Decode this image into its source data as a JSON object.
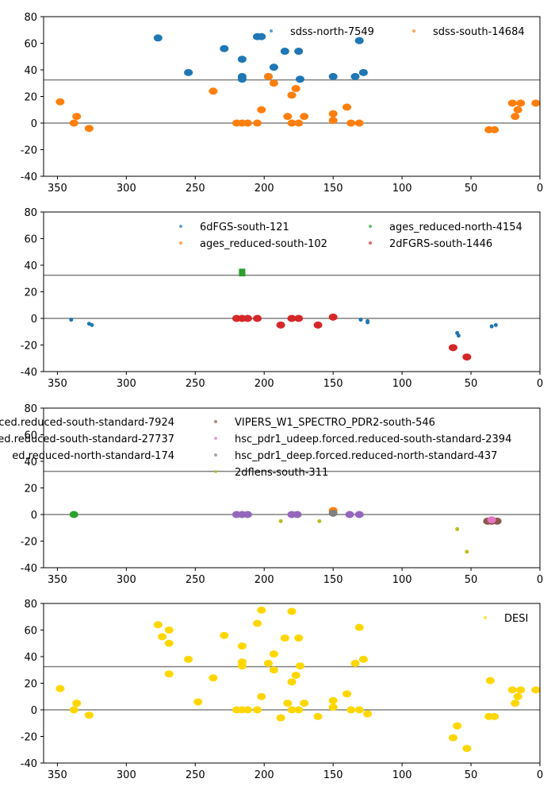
{
  "chart_data": [
    {
      "type": "scatter",
      "xlim": [
        360,
        0
      ],
      "ylim": [
        -40,
        80
      ],
      "xticks": [
        "350",
        "300",
        "250",
        "200",
        "150",
        "100",
        "50",
        "0"
      ],
      "yticks": [
        "80",
        "60",
        "40",
        "20",
        "0",
        "-20",
        "-40"
      ],
      "hlines": [
        0,
        32.5
      ],
      "legend": "top-right",
      "series": [
        {
          "name": "sdss-north-7549",
          "color": "#1f77b4",
          "points": [
            [
              277,
              64
            ],
            [
              255,
              38
            ],
            [
              229,
              56
            ],
            [
              216,
              48
            ],
            [
              216,
              35
            ],
            [
              216,
              33
            ],
            [
              205,
              65
            ],
            [
              202,
              65
            ],
            [
              197,
              35
            ],
            [
              193,
              42
            ],
            [
              185,
              54
            ],
            [
              175,
              54
            ],
            [
              174,
              33
            ],
            [
              150,
              35
            ],
            [
              134,
              35
            ],
            [
              131,
              62
            ],
            [
              128,
              38
            ]
          ]
        },
        {
          "name": "sdss-south-14684",
          "color": "#ff7f0e",
          "points": [
            [
              348,
              16
            ],
            [
              338,
              0
            ],
            [
              336,
              5
            ],
            [
              327,
              -4
            ],
            [
              237,
              24
            ],
            [
              220,
              0
            ],
            [
              216,
              0
            ],
            [
              212,
              0
            ],
            [
              205,
              0
            ],
            [
              202,
              10
            ],
            [
              197,
              35
            ],
            [
              193,
              30
            ],
            [
              183,
              5
            ],
            [
              180,
              0
            ],
            [
              180,
              21
            ],
            [
              177,
              26
            ],
            [
              175,
              0
            ],
            [
              171,
              5
            ],
            [
              150,
              7
            ],
            [
              150,
              2
            ],
            [
              140,
              12
            ],
            [
              137,
              0
            ],
            [
              131,
              0
            ],
            [
              37,
              -5
            ],
            [
              33,
              -5
            ],
            [
              20,
              15
            ],
            [
              18,
              5
            ],
            [
              16,
              10
            ],
            [
              14,
              15
            ],
            [
              3,
              15
            ]
          ]
        }
      ]
    },
    {
      "type": "scatter",
      "xlim": [
        360,
        0
      ],
      "ylim": [
        -40,
        80
      ],
      "xticks": [
        "350",
        "300",
        "250",
        "200",
        "150",
        "100",
        "50",
        "0"
      ],
      "yticks": [
        "80",
        "60",
        "40",
        "20",
        "0",
        "-20",
        "-40"
      ],
      "hlines": [
        0,
        32.5
      ],
      "legend": "top-right",
      "series": [
        {
          "name": "6dFGS-south-121",
          "color": "#1f77b4",
          "points": [
            [
              340,
              -1
            ],
            [
              327,
              -4
            ],
            [
              325,
              -5
            ],
            [
              188,
              -6
            ],
            [
              130,
              -1
            ],
            [
              125,
              -2
            ],
            [
              125,
              -3
            ],
            [
              63,
              -21
            ],
            [
              60,
              -11
            ],
            [
              59,
              -13
            ],
            [
              35,
              -6
            ],
            [
              32,
              -5
            ]
          ]
        },
        {
          "name": "ages_reduced-south-102",
          "color": "#ff7f0e",
          "points": [
            [
              150,
              1
            ]
          ]
        },
        {
          "name": "ages_reduced-north-4154",
          "color": "#2ca02c",
          "points": [
            [
              216,
              35
            ],
            [
              216,
              34
            ]
          ]
        },
        {
          "name": "2dFGRS-south-1446",
          "color": "#d62728",
          "points": [
            [
              220,
              0
            ],
            [
              216,
              0
            ],
            [
              212,
              0
            ],
            [
              205,
              0
            ],
            [
              188,
              -5
            ],
            [
              180,
              0
            ],
            [
              175,
              0
            ],
            [
              161,
              -5
            ],
            [
              150,
              1
            ],
            [
              63,
              -22
            ],
            [
              53,
              -29
            ]
          ]
        }
      ]
    },
    {
      "type": "scatter",
      "xlim": [
        360,
        0
      ],
      "ylim": [
        -40,
        80
      ],
      "xticks": [
        "350",
        "300",
        "250",
        "200",
        "150",
        "100",
        "50",
        "0"
      ],
      "yticks": [
        "80",
        "60",
        "40",
        "20",
        "0",
        "-20",
        "-40"
      ],
      "hlines": [
        0,
        32.5
      ],
      "legend": "top",
      "series": [
        {
          "name": "ced.reduced-south-standard-7924",
          "color": "#ff7f0e",
          "points": [
            [
              150,
              3
            ]
          ]
        },
        {
          "name": "ced.reduced-south-standard-27737",
          "color": "#9467bd",
          "points": [
            [
              220,
              0
            ],
            [
              216,
              0
            ],
            [
              212,
              0
            ],
            [
              180,
              0
            ],
            [
              176,
              0
            ],
            [
              138,
              0
            ],
            [
              131,
              0
            ],
            [
              35,
              -5
            ]
          ]
        },
        {
          "name": "ed.reduced-north-standard-174",
          "color": "#2ca02c",
          "points": [
            [
              338,
              0
            ]
          ]
        },
        {
          "name": "VIPERS_W1_SPECTRO_PDR2-south-546",
          "color": "#8c564b",
          "points": [
            [
              38,
              -5
            ],
            [
              35,
              -5
            ],
            [
              31,
              -5
            ]
          ]
        },
        {
          "name": "hsc_pdr1_udeep.forced.reduced-south-standard-2394",
          "color": "#e377c2",
          "points": [
            [
              35,
              -4
            ]
          ]
        },
        {
          "name": "hsc_pdr1_deep.forced.reduced-north-standard-437",
          "color": "#7f7f7f",
          "points": [
            [
              150,
              1
            ]
          ]
        },
        {
          "name": "2dflens-south-311",
          "color": "#bcbd22",
          "points": [
            [
              188,
              -5
            ],
            [
              160,
              -5
            ],
            [
              60,
              -11
            ],
            [
              53,
              -28
            ]
          ]
        }
      ]
    },
    {
      "type": "scatter",
      "xlim": [
        360,
        0
      ],
      "ylim": [
        -40,
        80
      ],
      "xticks": [
        "350",
        "300",
        "250",
        "200",
        "150",
        "100",
        "50",
        "0"
      ],
      "yticks": [
        "80",
        "60",
        "40",
        "20",
        "0",
        "-20",
        "-40"
      ],
      "hlines": [
        0,
        32.5
      ],
      "legend": "top-right",
      "series": [
        {
          "name": "DESI",
          "color": "#ffd700",
          "points": [
            [
              348,
              16
            ],
            [
              338,
              0
            ],
            [
              336,
              5
            ],
            [
              327,
              -4
            ],
            [
              277,
              64
            ],
            [
              274,
              55
            ],
            [
              269,
              60
            ],
            [
              269,
              50
            ],
            [
              269,
              27
            ],
            [
              255,
              38
            ],
            [
              248,
              6
            ],
            [
              237,
              24
            ],
            [
              229,
              56
            ],
            [
              220,
              0
            ],
            [
              216,
              0
            ],
            [
              216,
              36
            ],
            [
              216,
              33
            ],
            [
              216,
              48
            ],
            [
              212,
              0
            ],
            [
              205,
              0
            ],
            [
              205,
              65
            ],
            [
              202,
              75
            ],
            [
              202,
              10
            ],
            [
              197,
              35
            ],
            [
              193,
              30
            ],
            [
              193,
              42
            ],
            [
              188,
              -6
            ],
            [
              185,
              54
            ],
            [
              183,
              5
            ],
            [
              180,
              74
            ],
            [
              180,
              0
            ],
            [
              180,
              21
            ],
            [
              177,
              26
            ],
            [
              175,
              0
            ],
            [
              175,
              54
            ],
            [
              174,
              33
            ],
            [
              171,
              5
            ],
            [
              161,
              -5
            ],
            [
              150,
              7
            ],
            [
              150,
              2
            ],
            [
              140,
              12
            ],
            [
              137,
              0
            ],
            [
              134,
              35
            ],
            [
              131,
              62
            ],
            [
              131,
              0
            ],
            [
              128,
              38
            ],
            [
              125,
              -3
            ],
            [
              63,
              -21
            ],
            [
              60,
              -12
            ],
            [
              53,
              -29
            ],
            [
              37,
              -5
            ],
            [
              36,
              22
            ],
            [
              33,
              -5
            ],
            [
              20,
              15
            ],
            [
              18,
              5
            ],
            [
              16,
              10
            ],
            [
              14,
              15
            ],
            [
              3,
              15
            ]
          ]
        }
      ]
    }
  ]
}
